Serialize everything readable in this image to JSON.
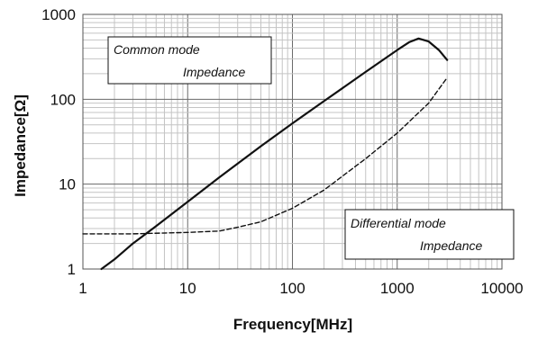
{
  "chart_data": {
    "type": "line",
    "xlabel": "Frequency[MHz]",
    "ylabel": "Impedance[Ω]",
    "x_scale": "log",
    "y_scale": "log",
    "xlim": [
      1,
      10000
    ],
    "ylim": [
      1,
      1000
    ],
    "x_ticks": [
      "1",
      "10",
      "100",
      "1000",
      "10000"
    ],
    "y_ticks": [
      "1",
      "10",
      "100",
      "1000"
    ],
    "grid": true,
    "series": [
      {
        "style": "solid",
        "x": [
          1.5,
          2,
          3,
          5,
          10,
          20,
          50,
          100,
          200,
          500,
          1000,
          1300,
          1600,
          2000,
          2500,
          3000
        ],
        "y": [
          1.0,
          1.3,
          2.0,
          3.2,
          6.2,
          12,
          28,
          52,
          95,
          210,
          380,
          470,
          520,
          480,
          380,
          290
        ]
      },
      {
        "style": "dashed",
        "x": [
          1,
          3,
          10,
          20,
          30,
          50,
          100,
          200,
          500,
          1000,
          2000,
          3000
        ],
        "y": [
          2.6,
          2.6,
          2.7,
          2.8,
          3.1,
          3.6,
          5.2,
          8.5,
          20,
          40,
          90,
          180
        ]
      }
    ],
    "annotations": [
      {
        "line1": "Common mode",
        "line2": "Impedance"
      },
      {
        "line1": "Differential mode",
        "line2": "Impedance"
      }
    ]
  }
}
